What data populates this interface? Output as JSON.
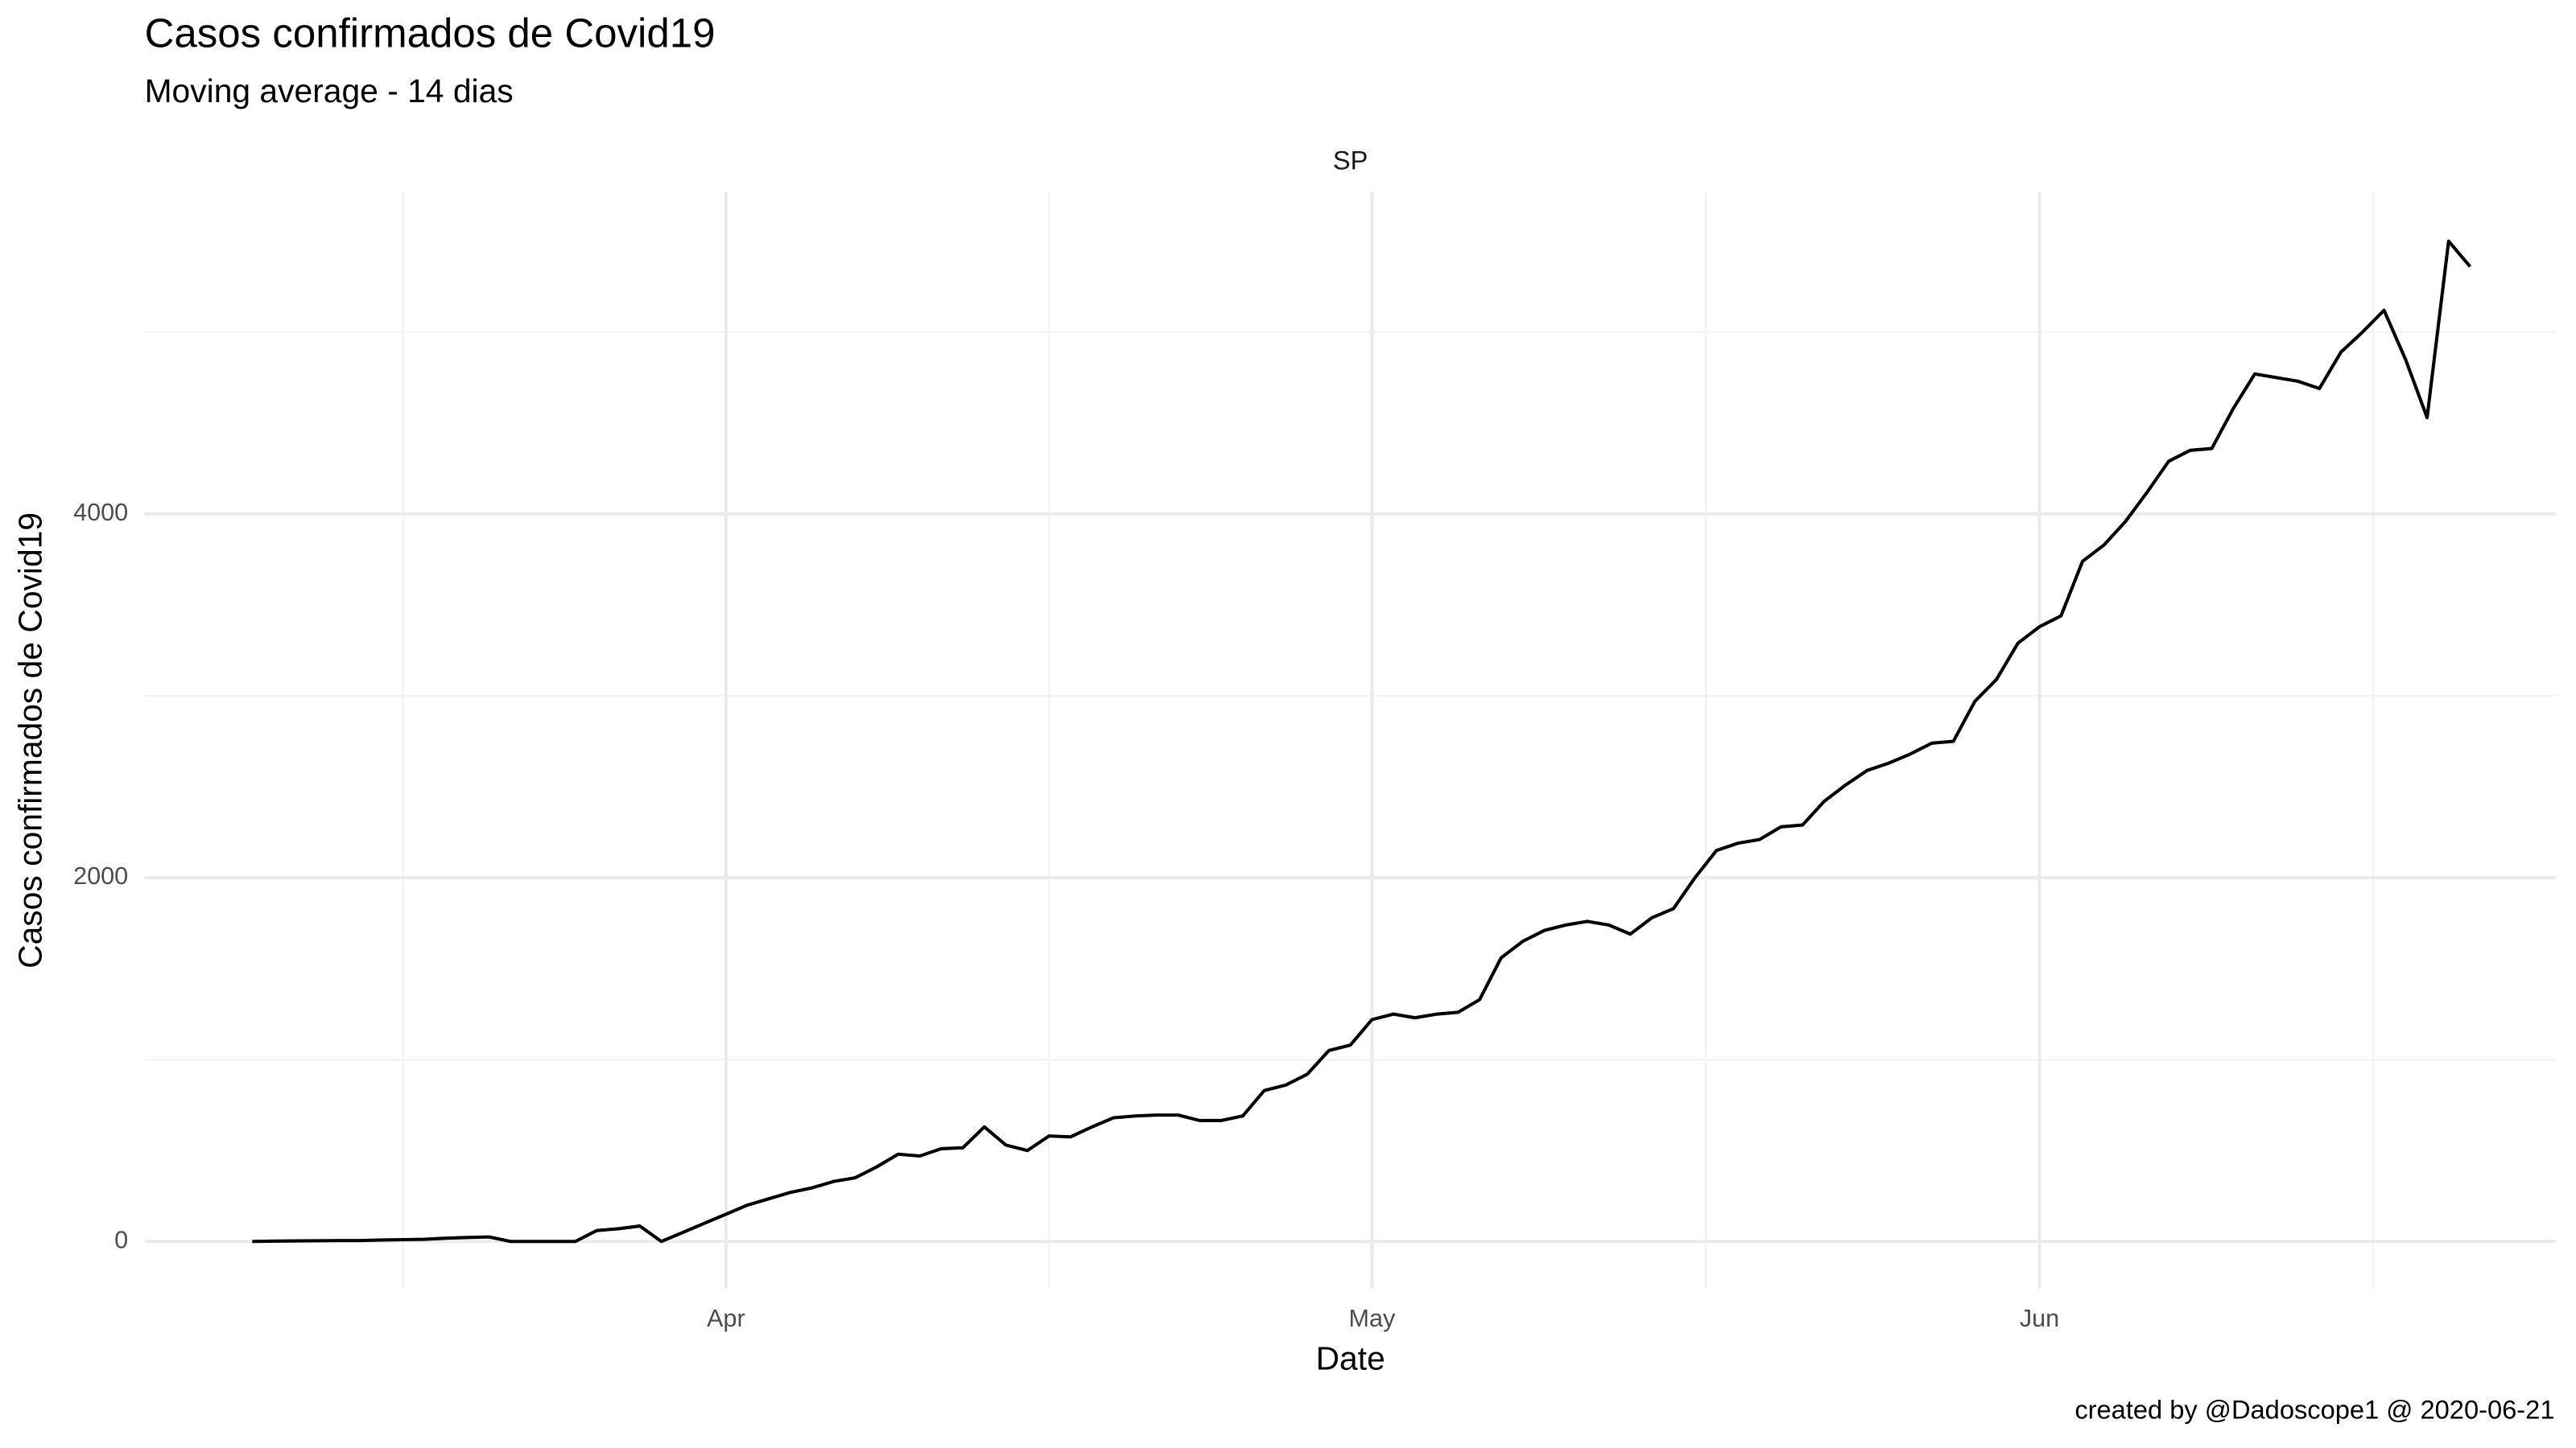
{
  "chart_data": {
    "type": "line",
    "title": "Casos confirmados de Covid19",
    "subtitle": "Moving average - 14 dias",
    "facet": "SP",
    "x_label": "Date",
    "y_label": "Casos confirmados de Covid19",
    "caption": "created by @Dadoscope1 @ 2020-06-21",
    "color": "#000000",
    "grid": true,
    "xlim": [
      -27,
      85
    ],
    "xticks": [
      {
        "value": 0,
        "label": "Apr"
      },
      {
        "value": 30,
        "label": "May"
      },
      {
        "value": 61,
        "label": "Jun"
      }
    ],
    "ylim": [
      -260,
      5770
    ],
    "yticks": [
      0,
      2000,
      4000
    ],
    "x": [
      -22,
      -21,
      -20,
      -19,
      -18,
      -17,
      -16,
      -15,
      -14,
      -13,
      -12,
      -11,
      -10,
      -9,
      -8,
      -7,
      -6,
      -5,
      -4,
      -3,
      -2,
      -1,
      0,
      1,
      2,
      3,
      4,
      5,
      6,
      7,
      8,
      9,
      10,
      11,
      12,
      13,
      14,
      15,
      16,
      17,
      18,
      19,
      20,
      21,
      22,
      23,
      24,
      25,
      26,
      27,
      28,
      29,
      30,
      31,
      32,
      33,
      34,
      35,
      36,
      37,
      38,
      39,
      40,
      41,
      42,
      43,
      44,
      45,
      46,
      47,
      48,
      49,
      50,
      51,
      52,
      53,
      54,
      55,
      56,
      57,
      58,
      59,
      60,
      61,
      62,
      63,
      64,
      65,
      66,
      67,
      68,
      69,
      70,
      71,
      72,
      73,
      74,
      75,
      76,
      77,
      78,
      79,
      80,
      81
    ],
    "values": [
      0,
      2,
      3,
      4,
      5,
      5,
      8,
      10,
      12,
      18,
      22,
      25,
      0,
      0,
      0,
      0,
      60,
      70,
      85,
      0,
      50,
      100,
      150,
      200,
      235,
      270,
      295,
      330,
      350,
      410,
      480,
      470,
      510,
      515,
      630,
      530,
      500,
      580,
      575,
      630,
      680,
      690,
      695,
      695,
      665,
      665,
      690,
      830,
      860,
      920,
      1050,
      1080,
      1220,
      1250,
      1230,
      1250,
      1260,
      1330,
      1560,
      1650,
      1710,
      1740,
      1760,
      1740,
      1690,
      1780,
      1830,
      2000,
      2150,
      2190,
      2210,
      2280,
      2290,
      2420,
      2510,
      2590,
      2630,
      2680,
      2740,
      2750,
      2970,
      3090,
      3290,
      3380,
      3440,
      3740,
      3830,
      3960,
      4120,
      4290,
      4350,
      4360,
      4580,
      4770,
      4750,
      4730,
      4690,
      4890,
      5000,
      5120,
      4850,
      4530,
      5500,
      5360
    ]
  }
}
